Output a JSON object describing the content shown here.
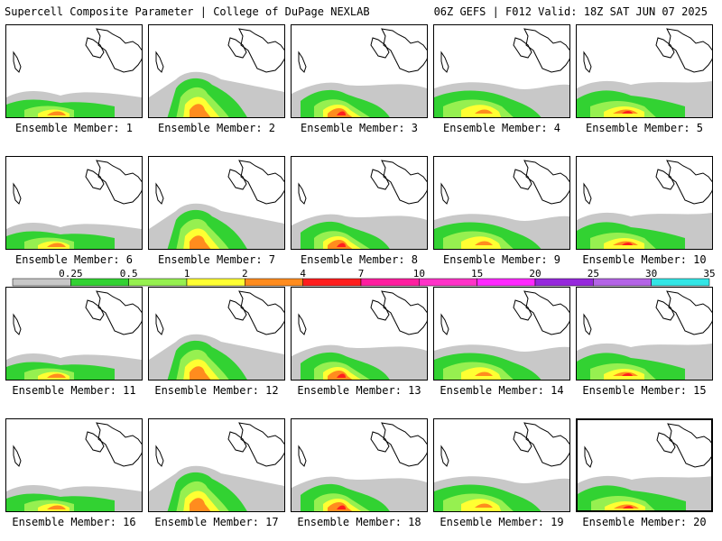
{
  "header": {
    "title_left": "Supercell Composite Parameter | College of DuPage NEXLAB",
    "title_right": "06Z GEFS | F012 Valid: 18Z SAT JUN 07 2025"
  },
  "panels": [
    {
      "label": "Ensemble Member: 1"
    },
    {
      "label": "Ensemble Member: 2"
    },
    {
      "label": "Ensemble Member: 3"
    },
    {
      "label": "Ensemble Member: 4"
    },
    {
      "label": "Ensemble Member: 5"
    },
    {
      "label": "Ensemble Member: 6"
    },
    {
      "label": "Ensemble Member: 7"
    },
    {
      "label": "Ensemble Member: 8"
    },
    {
      "label": "Ensemble Member: 9"
    },
    {
      "label": "Ensemble Member: 10"
    },
    {
      "label": "Ensemble Member: 11"
    },
    {
      "label": "Ensemble Member: 12"
    },
    {
      "label": "Ensemble Member: 13"
    },
    {
      "label": "Ensemble Member: 14"
    },
    {
      "label": "Ensemble Member: 15"
    },
    {
      "label": "Ensemble Member: 16"
    },
    {
      "label": "Ensemble Member: 17"
    },
    {
      "label": "Ensemble Member: 18"
    },
    {
      "label": "Ensemble Member: 19"
    },
    {
      "label": "Ensemble Member: 20",
      "highlighted": true
    }
  ],
  "colorbar": {
    "thresholds": [
      "0.25",
      "0.5",
      "1",
      "2",
      "4",
      "7",
      "10",
      "15",
      "20",
      "25",
      "30",
      "35"
    ],
    "colors": [
      "#c8c8c8",
      "#32d232",
      "#96f050",
      "#ffff32",
      "#ff8c1e",
      "#ff1e1e",
      "#ff1ea0",
      "#ff32c8",
      "#ff28ff",
      "#9628dc",
      "#b464e6",
      "#32e6e6"
    ]
  }
}
